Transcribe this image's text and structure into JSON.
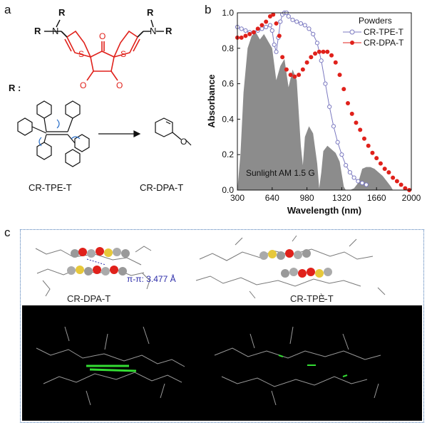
{
  "panel_a": {
    "letter": "a",
    "r_label": "R :",
    "r_atom": "R",
    "n_atom": "N",
    "o_atom": "O",
    "s_atom": "S",
    "label_tpe": "CR-TPE-T",
    "label_dpa": "CR-DPA-T"
  },
  "panel_b": {
    "letter": "b"
  },
  "panel_c": {
    "letter": "c",
    "label_dpa": "CR-DPA-T",
    "label_tpe": "CR-TPE-T",
    "pi_text": "π-π: 3.477 Å"
  },
  "colors": {
    "red": "#e0211b",
    "purple": "#7b79c0",
    "gray": "#8c8c8c",
    "blue": "#2a2aa8"
  },
  "chart_data": {
    "type": "line",
    "xlabel": "Wavelength (nm)",
    "ylabel": "Absorbance",
    "xlim": [
      300,
      2000
    ],
    "ylim": [
      0.0,
      1.0
    ],
    "xticks": [
      "300",
      "640",
      "980",
      "1320",
      "1660",
      "2000"
    ],
    "yticks": [
      "0.0",
      "0.2",
      "0.4",
      "0.6",
      "0.8",
      "1.0"
    ],
    "legend_title": "Powders",
    "legend_position": "top-right",
    "annotation": "Sunlight AM 1.5 G",
    "series": [
      {
        "name": "CR-TPE-T",
        "color": "#7b79c0",
        "marker": "open-circle",
        "x": [
          300,
          340,
          380,
          420,
          460,
          500,
          540,
          580,
          620,
          640,
          660,
          680,
          700,
          720,
          740,
          760,
          780,
          800,
          840,
          880,
          920,
          960,
          1000,
          1040,
          1080,
          1120,
          1160,
          1200,
          1240,
          1280,
          1320,
          1360,
          1400,
          1440,
          1480,
          1520,
          1560
        ],
        "y": [
          0.92,
          0.91,
          0.9,
          0.89,
          0.89,
          0.9,
          0.91,
          0.92,
          0.93,
          0.9,
          0.82,
          0.78,
          0.86,
          0.95,
          0.99,
          1.0,
          1.0,
          0.98,
          0.96,
          0.95,
          0.94,
          0.93,
          0.91,
          0.88,
          0.83,
          0.73,
          0.6,
          0.47,
          0.36,
          0.27,
          0.2,
          0.14,
          0.1,
          0.07,
          0.05,
          0.04,
          0.03
        ]
      },
      {
        "name": "CR-DPA-T",
        "color": "#e0211b",
        "marker": "filled-circle",
        "x": [
          300,
          340,
          380,
          420,
          460,
          500,
          540,
          580,
          620,
          650,
          680,
          710,
          740,
          780,
          820,
          860,
          900,
          940,
          980,
          1020,
          1060,
          1100,
          1140,
          1180,
          1220,
          1260,
          1300,
          1340,
          1380,
          1420,
          1460,
          1500,
          1540,
          1580,
          1620,
          1660,
          1700,
          1740,
          1780,
          1820,
          1860,
          1900,
          1940,
          1980
        ],
        "y": [
          0.86,
          0.86,
          0.87,
          0.88,
          0.89,
          0.91,
          0.93,
          0.95,
          0.98,
          0.99,
          0.94,
          0.87,
          0.75,
          0.68,
          0.65,
          0.64,
          0.65,
          0.68,
          0.72,
          0.75,
          0.77,
          0.78,
          0.78,
          0.78,
          0.76,
          0.72,
          0.65,
          0.57,
          0.49,
          0.43,
          0.38,
          0.34,
          0.29,
          0.25,
          0.21,
          0.18,
          0.15,
          0.12,
          0.1,
          0.07,
          0.05,
          0.03,
          0.01,
          0.0
        ]
      },
      {
        "name": "Sunlight AM 1.5 G",
        "type": "area",
        "color": "#8c8c8c",
        "x": [
          300,
          330,
          360,
          400,
          440,
          480,
          520,
          560,
          600,
          640,
          680,
          720,
          760,
          800,
          840,
          880,
          920,
          940,
          960,
          1000,
          1040,
          1080,
          1100,
          1120,
          1140,
          1180,
          1220,
          1260,
          1300,
          1340,
          1360,
          1380,
          1400,
          1440,
          1480,
          1520,
          1560,
          1600,
          1640,
          1680,
          1720,
          1760,
          1800,
          1820,
          1840,
          1860,
          1900,
          2000
        ],
        "y": [
          0.0,
          0.2,
          0.55,
          0.8,
          0.87,
          0.89,
          0.85,
          0.88,
          0.84,
          0.8,
          0.62,
          0.7,
          0.74,
          0.58,
          0.68,
          0.62,
          0.25,
          0.14,
          0.3,
          0.36,
          0.32,
          0.15,
          0.01,
          0.1,
          0.22,
          0.25,
          0.23,
          0.21,
          0.16,
          0.02,
          0.0,
          0.0,
          0.0,
          0.01,
          0.04,
          0.12,
          0.13,
          0.13,
          0.12,
          0.1,
          0.08,
          0.05,
          0.02,
          0.0,
          0.0,
          0.0,
          0.0,
          0.0
        ]
      }
    ]
  }
}
